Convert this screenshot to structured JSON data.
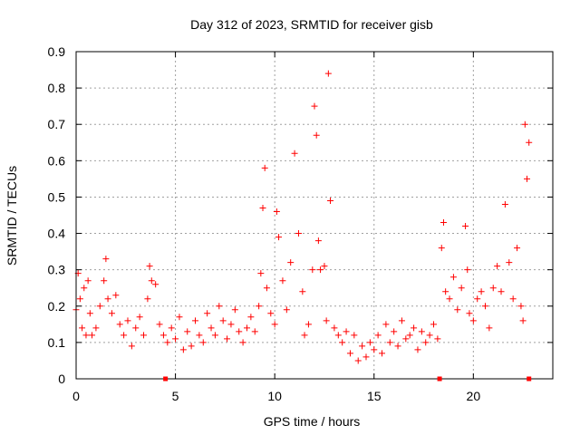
{
  "chart_data": {
    "type": "scatter",
    "title": "Day 312 of 2023, SRMTID for receiver gisb",
    "xlabel": "GPS time / hours",
    "ylabel": "SRMTID / TECUs",
    "xlim": [
      0,
      24
    ],
    "ylim": [
      0,
      0.9
    ],
    "grid": true,
    "marker": "+",
    "color": "#ff0000",
    "xticks": [
      0,
      5,
      10,
      15,
      20
    ],
    "xtick_labels": [
      "0",
      "5",
      "10",
      "15",
      "20"
    ],
    "yticks": [
      0,
      0.1,
      0.2,
      0.3,
      0.4,
      0.5,
      0.6,
      0.7,
      0.8,
      0.9
    ],
    "ytick_labels": [
      "0",
      "0.1",
      "0.2",
      "0.3",
      "0.4",
      "0.5",
      "0.6",
      "0.7",
      "0.8",
      "0.9"
    ],
    "series": [
      {
        "name": "SRMTID",
        "x": [
          0.0,
          0.1,
          0.2,
          0.3,
          0.4,
          0.5,
          0.6,
          0.7,
          0.8,
          1.0,
          1.2,
          1.4,
          1.5,
          1.6,
          1.8,
          2.0,
          2.2,
          2.4,
          2.6,
          2.8,
          3.0,
          3.2,
          3.4,
          3.6,
          3.7,
          3.8,
          4.0,
          4.2,
          4.4,
          4.6,
          4.8,
          5.0,
          5.2,
          5.4,
          5.6,
          5.8,
          6.0,
          6.2,
          6.4,
          6.6,
          6.8,
          7.0,
          7.2,
          7.4,
          7.6,
          7.8,
          8.0,
          8.2,
          8.4,
          8.6,
          8.8,
          9.0,
          9.2,
          9.3,
          9.4,
          9.5,
          9.6,
          9.8,
          10.0,
          10.1,
          10.2,
          10.4,
          10.6,
          10.8,
          11.0,
          11.2,
          11.4,
          11.5,
          11.7,
          11.9,
          12.0,
          12.1,
          12.2,
          12.3,
          12.5,
          12.6,
          12.7,
          12.8,
          13.0,
          13.2,
          13.4,
          13.6,
          13.8,
          14.0,
          14.2,
          14.4,
          14.6,
          14.8,
          15.0,
          15.2,
          15.4,
          15.6,
          15.8,
          16.0,
          16.2,
          16.4,
          16.6,
          16.8,
          17.0,
          17.2,
          17.4,
          17.6,
          17.8,
          18.0,
          18.2,
          18.4,
          18.5,
          18.6,
          18.8,
          19.0,
          19.2,
          19.4,
          19.6,
          19.7,
          19.8,
          20.0,
          20.2,
          20.4,
          20.6,
          20.8,
          21.0,
          21.2,
          21.4,
          21.6,
          21.8,
          22.0,
          22.2,
          22.4,
          22.5,
          22.6,
          22.7,
          22.8
        ],
        "y": [
          0.19,
          0.29,
          0.22,
          0.14,
          0.25,
          0.12,
          0.27,
          0.18,
          0.12,
          0.14,
          0.2,
          0.27,
          0.33,
          0.22,
          0.18,
          0.23,
          0.15,
          0.12,
          0.16,
          0.09,
          0.14,
          0.17,
          0.12,
          0.22,
          0.31,
          0.27,
          0.26,
          0.15,
          0.12,
          0.1,
          0.14,
          0.11,
          0.17,
          0.08,
          0.13,
          0.09,
          0.16,
          0.12,
          0.1,
          0.18,
          0.14,
          0.12,
          0.2,
          0.16,
          0.11,
          0.15,
          0.19,
          0.13,
          0.1,
          0.14,
          0.17,
          0.13,
          0.2,
          0.29,
          0.47,
          0.58,
          0.25,
          0.18,
          0.15,
          0.46,
          0.39,
          0.27,
          0.19,
          0.32,
          0.62,
          0.4,
          0.24,
          0.12,
          0.15,
          0.3,
          0.75,
          0.67,
          0.38,
          0.3,
          0.31,
          0.16,
          0.84,
          0.49,
          0.14,
          0.12,
          0.1,
          0.13,
          0.07,
          0.12,
          0.05,
          0.09,
          0.06,
          0.1,
          0.08,
          0.12,
          0.07,
          0.15,
          0.1,
          0.13,
          0.09,
          0.16,
          0.11,
          0.12,
          0.14,
          0.08,
          0.13,
          0.1,
          0.12,
          0.15,
          0.11,
          0.36,
          0.43,
          0.24,
          0.22,
          0.28,
          0.19,
          0.25,
          0.42,
          0.3,
          0.18,
          0.16,
          0.22,
          0.24,
          0.2,
          0.14,
          0.25,
          0.31,
          0.24,
          0.48,
          0.32,
          0.22,
          0.36,
          0.2,
          0.16,
          0.7,
          0.55,
          0.65
        ]
      }
    ],
    "axis_markers_x": [
      4.5,
      18.3,
      22.8
    ]
  }
}
